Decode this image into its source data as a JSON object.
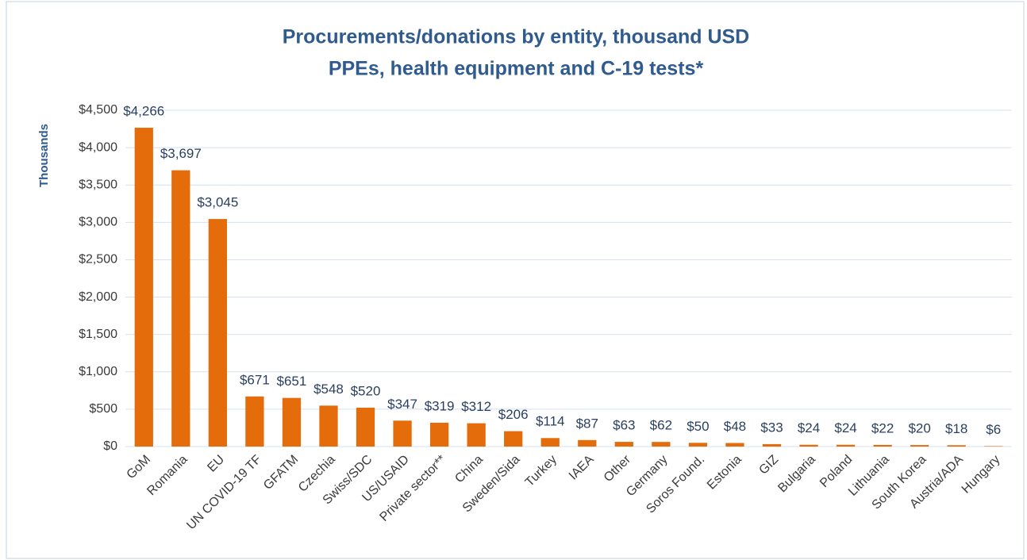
{
  "chart_data": {
    "type": "bar",
    "title": "Procurements/donations by entity, thousand USD",
    "subtitle": "PPEs, health equipment and C-19 tests*",
    "y_label": "Thousands",
    "categories": [
      "GoM",
      "Romania",
      "EU",
      "UN COVID-19 TF",
      "GFATM",
      "Czechia",
      "Swiss/SDC",
      "US/USAID",
      "Private sector**",
      "China",
      "Sweden/Sida",
      "Turkey",
      "IAEA",
      "Other",
      "Germany",
      "Soros Found.",
      "Estonia",
      "GIZ",
      "Bulgaria",
      "Poland",
      "Lithuania",
      "South Korea",
      "Austria/ADA",
      "Hungary"
    ],
    "values": [
      4266,
      3697,
      3045,
      671,
      651,
      548,
      520,
      347,
      319,
      312,
      206,
      114,
      87,
      63,
      62,
      50,
      48,
      33,
      24,
      24,
      22,
      20,
      18,
      6
    ],
    "value_labels": [
      "$4,266",
      "$3,697",
      "$3,045",
      "$671",
      "$651",
      "$548",
      "$520",
      "$347",
      "$319",
      "$312",
      "$206",
      "$114",
      "$87",
      "$63",
      "$62",
      "$50",
      "$48",
      "$33",
      "$24",
      "$24",
      "$22",
      "$20",
      "$18",
      "$6"
    ],
    "color": "#e46c0a",
    "ylim": [
      0,
      4500
    ],
    "yticks": [
      {
        "value": 0,
        "label": "$0"
      },
      {
        "value": 500,
        "label": "$500"
      },
      {
        "value": 1000,
        "label": "$1,000"
      },
      {
        "value": 1500,
        "label": "$1,500"
      },
      {
        "value": 2000,
        "label": "$2,000"
      },
      {
        "value": 2500,
        "label": "$2,500"
      },
      {
        "value": 3000,
        "label": "$3,000"
      },
      {
        "value": 3500,
        "label": "$3,500"
      },
      {
        "value": 4000,
        "label": "$4,000"
      },
      {
        "value": 4500,
        "label": "$4,500"
      }
    ],
    "grid": true
  }
}
